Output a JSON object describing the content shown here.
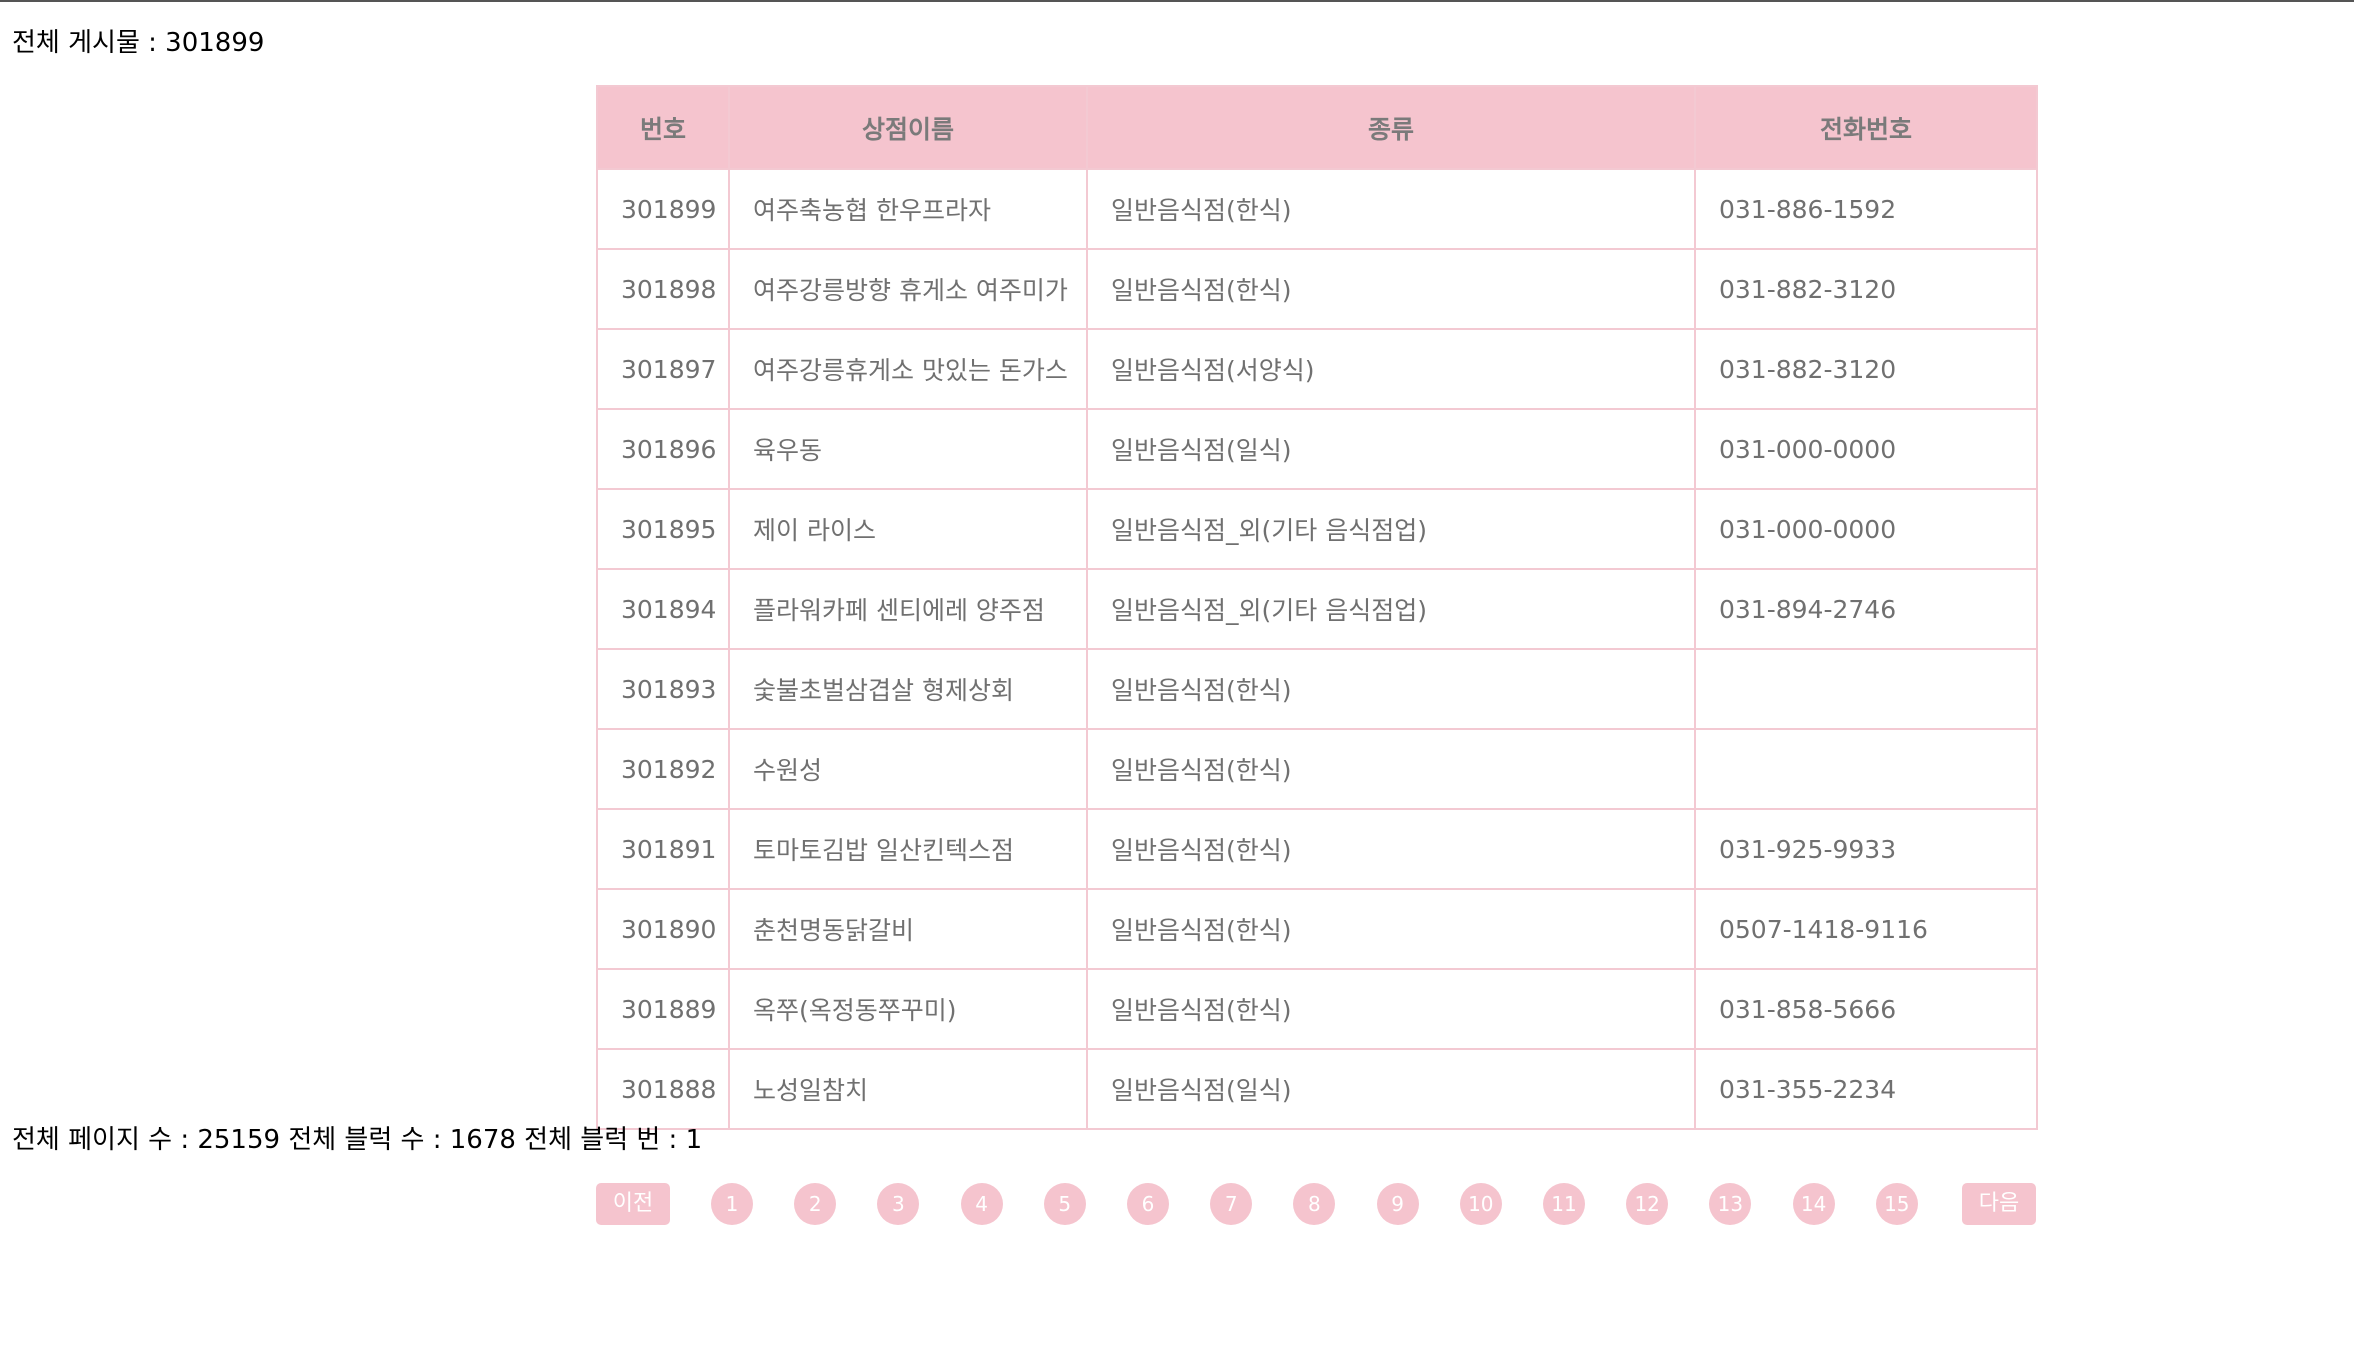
{
  "summary": {
    "total_posts_text": "전체 게시물 : 301899",
    "page_info_text": "전체 페이지 수 : 25159 전체 블럭 수 : 1678 전체 블럭 번 : 1"
  },
  "colors": {
    "header_bg": "#f5c4ce",
    "border": "#f3c9d2",
    "text": "#707070"
  },
  "table": {
    "headers": [
      "번호",
      "상점이름",
      "종류",
      "전화번호"
    ],
    "rows": [
      [
        "301899",
        "여주축농협 한우프라자",
        "일반음식점(한식)",
        "031-886-1592"
      ],
      [
        "301898",
        "여주강릉방향 휴게소 여주미가",
        "일반음식점(한식)",
        "031-882-3120"
      ],
      [
        "301897",
        "여주강릉휴게소 맛있는 돈가스",
        "일반음식점(서양식)",
        "031-882-3120"
      ],
      [
        "301896",
        "육우동",
        "일반음식점(일식)",
        "031-000-0000"
      ],
      [
        "301895",
        "제이 라이스",
        "일반음식점_외(기타 음식점업)",
        "031-000-0000"
      ],
      [
        "301894",
        "플라워카페 센티에레 양주점",
        "일반음식점_외(기타 음식점업)",
        "031-894-2746"
      ],
      [
        "301893",
        "숯불초벌삼겹살 형제상회",
        "일반음식점(한식)",
        ""
      ],
      [
        "301892",
        "수원성",
        "일반음식점(한식)",
        ""
      ],
      [
        "301891",
        "토마토김밥 일산킨텍스점",
        "일반음식점(한식)",
        "031-925-9933"
      ],
      [
        "301890",
        "춘천명동닭갈비",
        "일반음식점(한식)",
        "0507-1418-9116"
      ],
      [
        "301889",
        "옥쭈(옥정동쭈꾸미)",
        "일반음식점(한식)",
        "031-858-5666"
      ],
      [
        "301888",
        "노성일참치",
        "일반음식점(일식)",
        "031-355-2234"
      ]
    ]
  },
  "pagination": {
    "prev_label": "이전",
    "next_label": "다음",
    "pages": [
      "1",
      "2",
      "3",
      "4",
      "5",
      "6",
      "7",
      "8",
      "9",
      "10",
      "11",
      "12",
      "13",
      "14",
      "15"
    ]
  }
}
